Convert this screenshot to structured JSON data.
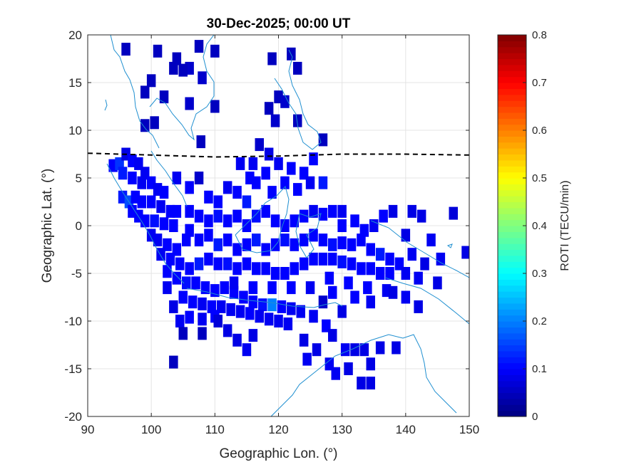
{
  "chart_data": {
    "type": "heatmap",
    "title": "30-Dec-2025; 00:00 UT",
    "xlabel": "Geographic Lon. (°)",
    "ylabel": "Geographic Lat. (°)",
    "xlim": [
      90,
      150
    ],
    "ylim": [
      -20,
      20
    ],
    "xticks": [
      "90",
      "100",
      "110",
      "120",
      "130",
      "140",
      "150"
    ],
    "yticks": [
      "20",
      "15",
      "10",
      "5",
      "0",
      "-5",
      "-10",
      "-15",
      "-20"
    ],
    "grid": true,
    "colorbar": {
      "label": "ROTI (TECU/min)",
      "range": [
        0,
        0.8
      ],
      "ticks": [
        "0.8",
        "0.7",
        "0.6",
        "0.5",
        "0.4",
        "0.3",
        "0.2",
        "0.1",
        "0"
      ],
      "colormap": "jet",
      "placement": "right"
    },
    "coastline_color": "#1f8fd0",
    "magnetic_equator": {
      "style": "dashed",
      "color": "#000000",
      "lon": [
        90,
        100,
        110,
        120,
        130,
        140,
        150
      ],
      "lat": [
        7.6,
        7.4,
        7.2,
        7.3,
        7.5,
        7.5,
        7.4
      ]
    },
    "cells": [
      [
        96,
        18.5,
        0.05
      ],
      [
        101,
        18.3,
        0.05
      ],
      [
        104,
        17.5,
        0.05
      ],
      [
        106,
        16.5,
        0.06
      ],
      [
        107.5,
        18.8,
        0.05
      ],
      [
        110,
        18.3,
        0.05
      ],
      [
        103.5,
        16.5,
        0.05
      ],
      [
        105,
        16.3,
        0.05
      ],
      [
        108,
        15.5,
        0.06
      ],
      [
        100,
        15.2,
        0.05
      ],
      [
        99,
        14,
        0.05
      ],
      [
        102,
        13.5,
        0.05
      ],
      [
        106,
        12.8,
        0.06
      ],
      [
        110,
        12.5,
        0.05
      ],
      [
        100.5,
        10.8,
        0.05
      ],
      [
        107.8,
        8.8,
        0.05
      ],
      [
        119,
        17.5,
        0.05
      ],
      [
        122,
        18,
        0.05
      ],
      [
        123,
        16.5,
        0.05
      ],
      [
        120,
        13.5,
        0.05
      ],
      [
        118.5,
        12.3,
        0.05
      ],
      [
        121,
        13,
        0.06
      ],
      [
        123,
        11,
        0.05
      ],
      [
        119.5,
        11,
        0.06
      ],
      [
        127,
        9,
        0.05
      ],
      [
        94,
        6.3,
        0.1
      ],
      [
        95,
        6.5,
        0.14
      ],
      [
        96,
        7.5,
        0.08
      ],
      [
        97,
        6.8,
        0.1
      ],
      [
        98,
        6.5,
        0.09
      ],
      [
        99,
        5.5,
        0.09
      ],
      [
        95.5,
        5.5,
        0.12
      ],
      [
        97,
        5,
        0.1
      ],
      [
        98.5,
        4.5,
        0.09
      ],
      [
        100,
        4.5,
        0.1
      ],
      [
        101,
        3.8,
        0.09
      ],
      [
        102,
        3.5,
        0.1
      ],
      [
        95.5,
        3,
        0.12
      ],
      [
        96.5,
        2.5,
        0.16
      ],
      [
        97.5,
        3,
        0.1
      ],
      [
        98.5,
        2.5,
        0.1
      ],
      [
        100,
        2.5,
        0.1
      ],
      [
        101.5,
        2,
        0.09
      ],
      [
        103,
        1.5,
        0.1
      ],
      [
        104,
        1.5,
        0.1
      ],
      [
        97,
        1.5,
        0.1
      ],
      [
        98,
        1,
        0.1
      ],
      [
        99,
        0.5,
        0.1
      ],
      [
        100.5,
        0.5,
        0.11
      ],
      [
        102,
        0.2,
        0.1
      ],
      [
        103.5,
        0,
        0.1
      ],
      [
        100,
        -1,
        0.09
      ],
      [
        101,
        -1.5,
        0.09
      ],
      [
        102.5,
        -2,
        0.1
      ],
      [
        104,
        -2.5,
        0.1
      ],
      [
        105.5,
        -1.5,
        0.1
      ],
      [
        101.5,
        -3,
        0.09
      ],
      [
        103,
        -3.5,
        0.1
      ],
      [
        104.5,
        -4,
        0.1
      ],
      [
        106,
        -4.5,
        0.1
      ],
      [
        107.5,
        -4,
        0.12
      ],
      [
        102.5,
        -4.8,
        0.1
      ],
      [
        104,
        -5.5,
        0.1
      ],
      [
        105.5,
        -6,
        0.11
      ],
      [
        107,
        -6,
        0.1
      ],
      [
        108.5,
        -6.5,
        0.1
      ],
      [
        110,
        -6.8,
        0.1
      ],
      [
        111.5,
        -6.5,
        0.1
      ],
      [
        113,
        -7,
        0.1
      ],
      [
        114.5,
        -7.5,
        0.1
      ],
      [
        116,
        -8,
        0.1
      ],
      [
        117.5,
        -8.3,
        0.11
      ],
      [
        119,
        -8.3,
        0.2
      ],
      [
        120.5,
        -8.5,
        0.1
      ],
      [
        122,
        -8.7,
        0.09
      ],
      [
        123.5,
        -9,
        0.09
      ],
      [
        105,
        -7.5,
        0.1
      ],
      [
        106.5,
        -8,
        0.1
      ],
      [
        108,
        -8.2,
        0.09
      ],
      [
        109.5,
        -8.5,
        0.1
      ],
      [
        111,
        -8.5,
        0.09
      ],
      [
        112.5,
        -8.8,
        0.09
      ],
      [
        114,
        -9,
        0.09
      ],
      [
        115.5,
        -9.2,
        0.1
      ],
      [
        117,
        -9.5,
        0.09
      ],
      [
        118.5,
        -9.8,
        0.09
      ],
      [
        120,
        -10,
        0.09
      ],
      [
        121.5,
        -10.3,
        0.09
      ],
      [
        104.5,
        -10,
        0.09
      ],
      [
        106,
        -9.6,
        0.1
      ],
      [
        108,
        -9.8,
        0.09
      ],
      [
        110,
        -9.5,
        0.1
      ],
      [
        103.5,
        -8.5,
        0.08
      ],
      [
        102.5,
        -6.5,
        0.09
      ],
      [
        104,
        5,
        0.09
      ],
      [
        106,
        4,
        0.1
      ],
      [
        107.5,
        5,
        0.06
      ],
      [
        109,
        3,
        0.1
      ],
      [
        110.5,
        2.5,
        0.1
      ],
      [
        112,
        4,
        0.09
      ],
      [
        113.5,
        3.5,
        0.1
      ],
      [
        115,
        2.5,
        0.12
      ],
      [
        116.5,
        4.5,
        0.1
      ],
      [
        118,
        5.5,
        0.1
      ],
      [
        116,
        6.5,
        0.09
      ],
      [
        118.5,
        7.5,
        0.08
      ],
      [
        120,
        6.5,
        0.09
      ],
      [
        122,
        6,
        0.1
      ],
      [
        124,
        5.5,
        0.1
      ],
      [
        125.5,
        7,
        0.1
      ],
      [
        117,
        8.5,
        0.06
      ],
      [
        114,
        6.5,
        0.09
      ],
      [
        115.5,
        5,
        0.1
      ],
      [
        125,
        4.5,
        0.09
      ],
      [
        127,
        4.5,
        0.12
      ],
      [
        121,
        4.5,
        0.1
      ],
      [
        123,
        3.8,
        0.1
      ],
      [
        119,
        3.5,
        0.1
      ],
      [
        106,
        1.5,
        0.1
      ],
      [
        107.5,
        1,
        0.1
      ],
      [
        109,
        0.5,
        0.1
      ],
      [
        110.5,
        1,
        0.11
      ],
      [
        112,
        0.5,
        0.1
      ],
      [
        113.5,
        1,
        0.1
      ],
      [
        115,
        0,
        0.1
      ],
      [
        116.5,
        1,
        0.11
      ],
      [
        118,
        1.5,
        0.1
      ],
      [
        119.5,
        0.5,
        0.1
      ],
      [
        121,
        0,
        0.1
      ],
      [
        122.5,
        0.5,
        0.1
      ],
      [
        124,
        1,
        0.1
      ],
      [
        125.5,
        1.5,
        0.09
      ],
      [
        127,
        1.2,
        0.1
      ],
      [
        128.5,
        1.5,
        0.1
      ],
      [
        130,
        1.5,
        0.09
      ],
      [
        106,
        -0.5,
        0.1
      ],
      [
        107.5,
        -1.5,
        0.1
      ],
      [
        109,
        -1,
        0.1
      ],
      [
        110.5,
        -2,
        0.12
      ],
      [
        112,
        -1.5,
        0.1
      ],
      [
        113.5,
        -2.5,
        0.1
      ],
      [
        115,
        -2,
        0.1
      ],
      [
        116.5,
        -1.5,
        0.12
      ],
      [
        118,
        -2.5,
        0.1
      ],
      [
        119.5,
        -2,
        0.1
      ],
      [
        121,
        -1.5,
        0.11
      ],
      [
        122.5,
        -2,
        0.1
      ],
      [
        124,
        -1.5,
        0.1
      ],
      [
        125.5,
        -1,
        0.1
      ],
      [
        127,
        -1.5,
        0.1
      ],
      [
        128.5,
        -2,
        0.11
      ],
      [
        130,
        -1.8,
        0.1
      ],
      [
        131.5,
        -2,
        0.1
      ],
      [
        133,
        -1.5,
        0.1
      ],
      [
        134.5,
        -2.5,
        0.1
      ],
      [
        136,
        -3,
        0.12
      ],
      [
        137.5,
        -3.5,
        0.1
      ],
      [
        139,
        -4,
        0.1
      ],
      [
        130,
        0,
        0.1
      ],
      [
        132,
        0.5,
        0.1
      ],
      [
        133.5,
        -0.5,
        0.1
      ],
      [
        135,
        0,
        0.09
      ],
      [
        136.5,
        1,
        0.1
      ],
      [
        138,
        1.5,
        0.08
      ],
      [
        109,
        -3.5,
        0.1
      ],
      [
        110.5,
        -4,
        0.1
      ],
      [
        112,
        -4,
        0.11
      ],
      [
        113.5,
        -4.5,
        0.1
      ],
      [
        115,
        -4,
        0.1
      ],
      [
        116.5,
        -4.5,
        0.1
      ],
      [
        118,
        -4.5,
        0.1
      ],
      [
        119.5,
        -5,
        0.1
      ],
      [
        121,
        -5,
        0.1
      ],
      [
        122.5,
        -4.5,
        0.1
      ],
      [
        124,
        -4,
        0.1
      ],
      [
        125.5,
        -3.5,
        0.1
      ],
      [
        127,
        -3.5,
        0.1
      ],
      [
        128.5,
        -3.5,
        0.1
      ],
      [
        130,
        -3.8,
        0.11
      ],
      [
        131.5,
        -4,
        0.1
      ],
      [
        133,
        -4.5,
        0.1
      ],
      [
        134.5,
        -4.5,
        0.1
      ],
      [
        136,
        -5,
        0.1
      ],
      [
        137.5,
        -5,
        0.1
      ],
      [
        113,
        -6,
        0.09
      ],
      [
        116,
        -6.5,
        0.1
      ],
      [
        119,
        -6.5,
        0.1
      ],
      [
        122,
        -6.5,
        0.1
      ],
      [
        125,
        -6.5,
        0.09
      ],
      [
        128,
        -5.5,
        0.1
      ],
      [
        131,
        -6,
        0.1
      ],
      [
        134,
        -6.5,
        0.1
      ],
      [
        137,
        -6.8,
        0.09
      ],
      [
        141,
        1.5,
        0.08
      ],
      [
        142.5,
        1,
        0.08
      ],
      [
        147.5,
        1.3,
        0.07
      ],
      [
        140,
        -1,
        0.08
      ],
      [
        144,
        -1.5,
        0.09
      ],
      [
        141,
        -3,
        0.09
      ],
      [
        143,
        -4,
        0.08
      ],
      [
        145.5,
        -3.5,
        0.09
      ],
      [
        149.5,
        -2.8,
        0.08
      ],
      [
        140,
        -5,
        0.09
      ],
      [
        142,
        -5.5,
        0.09
      ],
      [
        145,
        -6,
        0.08
      ],
      [
        138,
        -7,
        0.08
      ],
      [
        140,
        -7.5,
        0.09
      ],
      [
        142,
        -8.5,
        0.08
      ],
      [
        128.5,
        -7,
        0.1
      ],
      [
        132,
        -7.5,
        0.1
      ],
      [
        134.5,
        -8,
        0.09
      ],
      [
        127,
        -8,
        0.06
      ],
      [
        130,
        -9,
        0.08
      ],
      [
        125.5,
        -9.5,
        0.09
      ],
      [
        127.5,
        -10.5,
        0.1
      ],
      [
        128.5,
        -11.5,
        0.08
      ],
      [
        124,
        -12,
        0.08
      ],
      [
        126,
        -13,
        0.08
      ],
      [
        124.5,
        -14,
        0.09
      ],
      [
        128,
        -14.5,
        0.09
      ],
      [
        130.5,
        -13,
        0.09
      ],
      [
        132,
        -13,
        0.08
      ],
      [
        133.5,
        -13,
        0.08
      ],
      [
        136,
        -12.8,
        0.08
      ],
      [
        138.5,
        -12.8,
        0.08
      ],
      [
        134.5,
        -14.5,
        0.08
      ],
      [
        131,
        -15,
        0.08
      ],
      [
        129,
        -15.5,
        0.09
      ],
      [
        133,
        -16.5,
        0.08
      ],
      [
        134.5,
        -16.5,
        0.08
      ],
      [
        115,
        -13,
        0.09
      ],
      [
        113.5,
        -12,
        0.08
      ],
      [
        116,
        -11.5,
        0.08
      ],
      [
        110.5,
        -10,
        0.07
      ],
      [
        112,
        -11,
        0.08
      ],
      [
        99,
        10.5,
        0.05
      ],
      [
        103.5,
        -14.3,
        0.05
      ],
      [
        108,
        -11.3,
        0.05
      ],
      [
        105,
        -11.3,
        0.05
      ]
    ]
  }
}
